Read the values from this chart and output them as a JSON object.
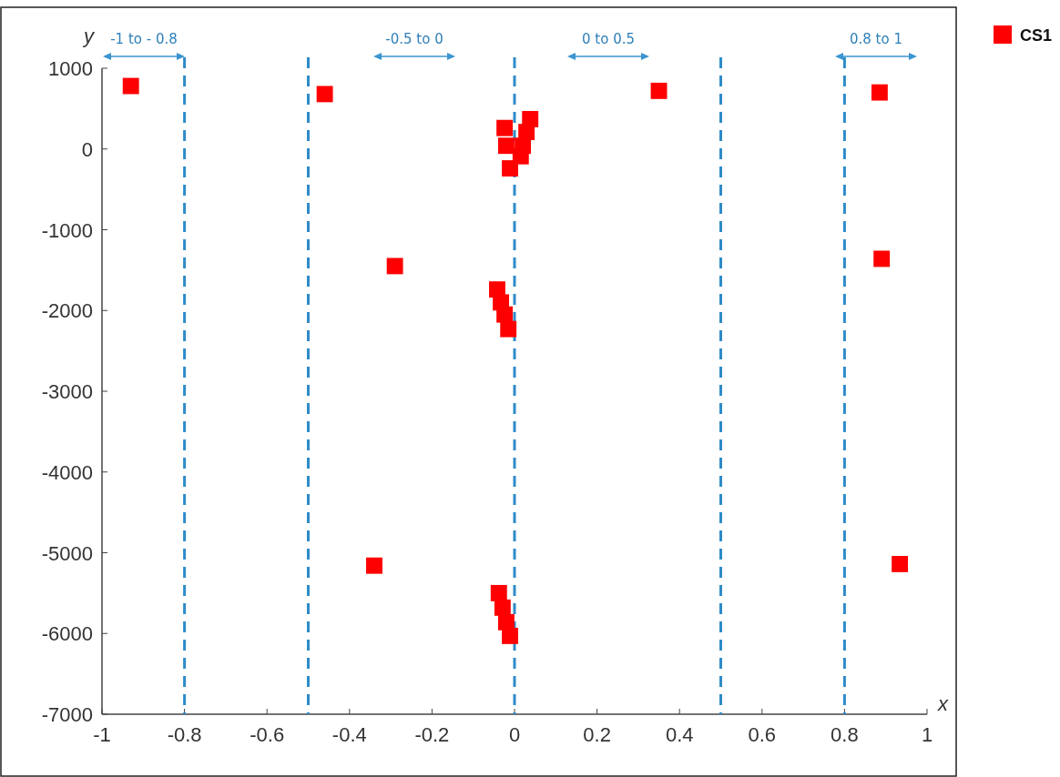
{
  "chart_data": {
    "type": "scatter",
    "xlabel": "x",
    "ylabel": "y",
    "legend": "top right",
    "marker": "square",
    "grid": false,
    "xlim": [
      -1,
      1
    ],
    "xticks": [
      -1,
      -0.8,
      -0.6,
      -0.4,
      -0.2,
      0,
      0.2,
      0.4,
      0.6,
      0.8,
      1
    ],
    "ylim": [
      -7000,
      1000
    ],
    "yticks": [
      -7000,
      -6000,
      -5000,
      -4000,
      -3000,
      -2000,
      -1000,
      0,
      1000
    ],
    "series": [
      {
        "name": "CS1",
        "color": "#ff0000",
        "x": [
          -0.93,
          -0.46,
          0.35,
          0.885,
          -0.29,
          0.89,
          -0.34,
          0.934,
          -0.024,
          0.038,
          0.029,
          0.02,
          0.015,
          -0.02,
          -0.011,
          -0.042,
          -0.033,
          -0.024,
          -0.015,
          -0.038,
          -0.029,
          -0.02,
          -0.011
        ],
        "values": [
          780,
          680,
          720,
          700,
          -1450,
          -1360,
          -5160,
          -5140,
          260,
          370,
          210,
          40,
          -90,
          40,
          -240,
          -1740,
          -1900,
          -2050,
          -2230,
          -5500,
          -5680,
          -5860,
          -6030
        ]
      }
    ],
    "ref_lines": [
      {
        "axis": "x",
        "value": -0.8,
        "color": "#2e8bc9",
        "line_style": "dashed"
      },
      {
        "axis": "x",
        "value": -0.5,
        "color": "#2e8bc9",
        "line_style": "dashed"
      },
      {
        "axis": "x",
        "value": 0,
        "color": "#2e8bc9",
        "line_style": "dashed"
      },
      {
        "axis": "x",
        "value": 0.5,
        "color": "#2e8bc9",
        "line_style": "dashed"
      },
      {
        "axis": "x",
        "value": 0.8,
        "color": "#2e8bc9",
        "line_style": "dashed"
      }
    ],
    "annotations": [
      "-1 to - 0.8",
      "-0.5 to 0",
      "0 to 0.5",
      "0.8 to 1"
    ]
  }
}
